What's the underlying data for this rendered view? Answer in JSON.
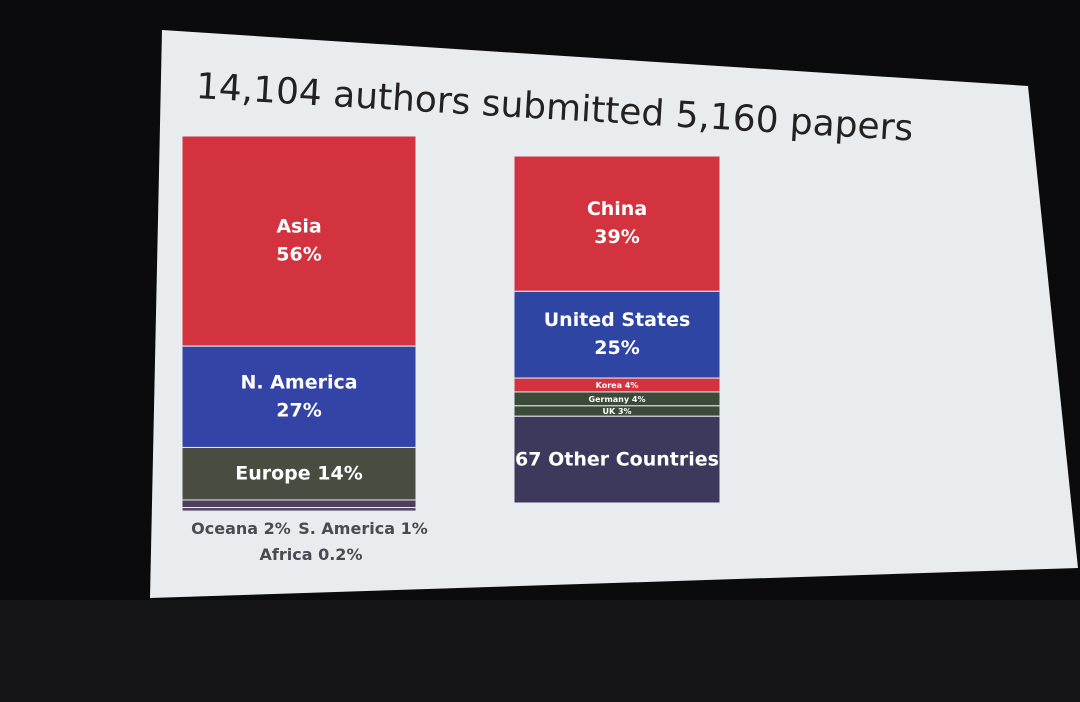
{
  "title": "14,104 authors submitted 5,160 papers",
  "chart_data": [
    {
      "type": "stacked-column",
      "series": [
        {
          "name": "Asia",
          "color": "#d3323f",
          "values": [
            56
          ],
          "value_labels": [
            "56%"
          ]
        },
        {
          "name": "N. America",
          "color": "#3444a6",
          "values": [
            27
          ],
          "value_labels": [
            "27%"
          ]
        },
        {
          "name": "Europe",
          "color": "#494c41",
          "values": [
            14
          ],
          "value_labels": [
            "14%"
          ]
        },
        {
          "name": "Oceana",
          "color": "#4c3f5c",
          "values": [
            2
          ],
          "value_labels": [
            "2%"
          ]
        },
        {
          "name": "S. America",
          "color": "#5a4a6a",
          "values": [
            1
          ],
          "value_labels": [
            "1%"
          ]
        },
        {
          "name": "Africa",
          "color": "#6a5a7a",
          "values": [
            0.2
          ],
          "value_labels": [
            "0.2%"
          ]
        }
      ]
    },
    {
      "type": "stacked-column",
      "series": [
        {
          "name": "China",
          "color": "#d3323f",
          "values": [
            39
          ],
          "value_labels": [
            "39%"
          ]
        },
        {
          "name": "United States",
          "color": "#2f45a3",
          "values": [
            25
          ],
          "value_labels": [
            "25%"
          ]
        },
        {
          "name": "Korea",
          "color": "#d3323f",
          "values": [
            4
          ],
          "value_labels": [
            "4%"
          ]
        },
        {
          "name": "Germany",
          "color": "#3c4a3a",
          "values": [
            4
          ],
          "value_labels": [
            "4%"
          ]
        },
        {
          "name": "UK",
          "color": "#3c4a3a",
          "values": [
            3
          ],
          "value_labels": [
            "3%"
          ]
        },
        {
          "name": "67 Other Countries",
          "color": "#3d395c",
          "values": [
            25
          ]
        }
      ]
    }
  ]
}
